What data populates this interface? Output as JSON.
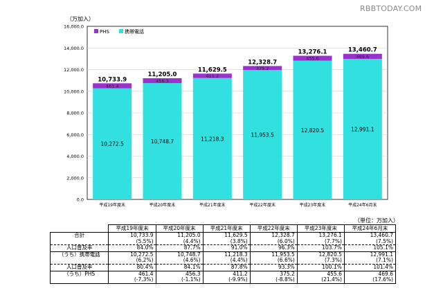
{
  "watermark": "RBBTODAY.COM",
  "chart_data": {
    "type": "bar",
    "stacked": true,
    "ylabel": "（万加入）",
    "ylim": [
      0,
      16000
    ],
    "yticks": [
      0,
      2000,
      4000,
      6000,
      8000,
      10000,
      12000,
      14000,
      16000
    ],
    "ytick_labels": [
      "0.0",
      "2,000.0",
      "4,000.0",
      "6,000.0",
      "8,000.0",
      "10,000.0",
      "12,000.0",
      "14,000.0",
      "16,000.0"
    ],
    "grid": true,
    "legend_position": "top-left",
    "categories": [
      "平成19年度末",
      "平成20年度末",
      "平成21年度末",
      "平成22年度末",
      "平成23年度末",
      "平成24年6月末"
    ],
    "series": [
      {
        "name": "携帯電話",
        "color": "#33e0e0",
        "values": [
          10272.5,
          10748.7,
          11218.3,
          11953.5,
          12820.5,
          12991.1
        ],
        "labels": [
          "10,272.5",
          "10,748.7",
          "11,218.3",
          "11,953.5",
          "12,820.5",
          "12,991.1"
        ]
      },
      {
        "name": "PHS",
        "color": "#9933cc",
        "values": [
          461.4,
          456.3,
          411.2,
          375.2,
          455.6,
          469.6
        ],
        "labels": [
          "461.4",
          "456.3",
          "411.2",
          "375.2",
          "455.6",
          "469.6"
        ]
      }
    ],
    "totals": [
      10733.9,
      11205.0,
      11629.5,
      12328.7,
      13276.1,
      13460.7
    ],
    "total_labels": [
      "10,733.9",
      "11,205.0",
      "11,629.5",
      "12,328.7",
      "13,276.1",
      "13,460.7"
    ]
  },
  "table": {
    "unit_note": "（単位：万加入）",
    "headers": [
      "平成19年度末",
      "平成20年度末",
      "平成21年度末",
      "平成22年度末",
      "平成23年度末",
      "平成24年6月末"
    ],
    "rows": [
      {
        "label": "合計",
        "cells": [
          "10,733.9",
          "11,205.0",
          "11,629.5",
          "12,328.7",
          "13,276.1",
          "13,460.7"
        ],
        "style": "grp-top"
      },
      {
        "label": "",
        "cells": [
          "(5.5%)",
          "(4.4%)",
          "(3.8%)",
          "(6.0%)",
          "(7.7%)",
          "(7.5%)"
        ],
        "style": ""
      },
      {
        "label": "人口普及率",
        "cells": [
          "84.0%",
          "87.7%",
          "91.0%",
          "96.3%",
          "103.7%",
          "105.1%"
        ],
        "style": "dash-top"
      },
      {
        "label": "（うち）携帯電話",
        "cells": [
          "10,272.5",
          "10,748.7",
          "11,218.3",
          "11,953.5",
          "12,820.5",
          "12,991.1"
        ],
        "style": "grp-top"
      },
      {
        "label": "",
        "cells": [
          "(6.2%)",
          "(4.6%)",
          "(4.4%)",
          "(6.6%)",
          "(7.3%)",
          "(7.1%)"
        ],
        "style": ""
      },
      {
        "label": "人口普及率",
        "cells": [
          "80.4%",
          "84.1%",
          "87.8%",
          "93.3%",
          "100.1%",
          "101.4%"
        ],
        "style": "dash-top"
      },
      {
        "label": "（うち）PHS",
        "cells": [
          "461.4",
          "456.3",
          "411.2",
          "375.2",
          "455.6",
          "469.6"
        ],
        "style": "grp-top"
      },
      {
        "label": "",
        "cells": [
          "(-7.3%)",
          "(-1.1%)",
          "(-9.9%)",
          "(-8.8%)",
          "(21.4%)",
          "(17.6%)"
        ],
        "style": "last-row"
      }
    ]
  }
}
